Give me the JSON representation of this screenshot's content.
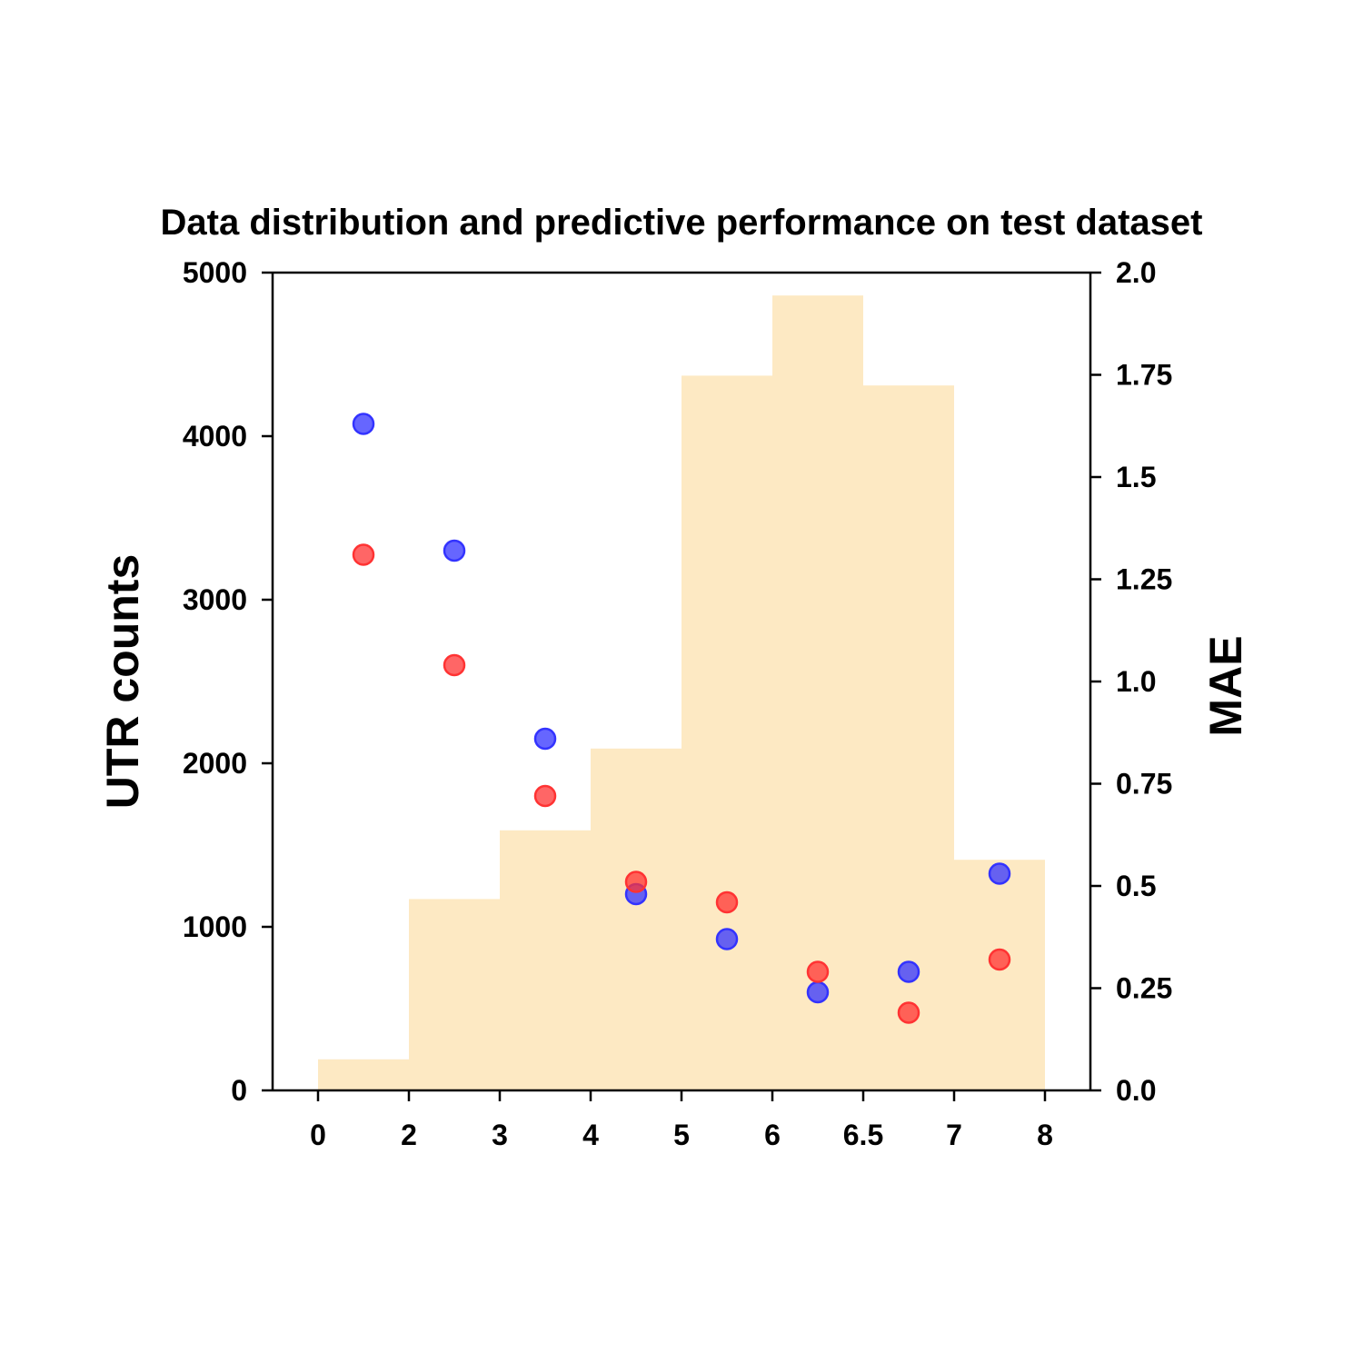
{
  "chart_data": {
    "type": "bar",
    "title": "Data distribution and predictive performance on test dataset",
    "xlabel": "",
    "ylabel": "UTR counts",
    "y2label": "MAE",
    "x_ticks": [
      "0",
      "2",
      "3",
      "4",
      "5",
      "6",
      "6.5",
      "7",
      "8"
    ],
    "ylim": [
      0,
      5000
    ],
    "y_ticks": [
      "0",
      "1000",
      "2000",
      "3000",
      "4000",
      "5000"
    ],
    "y2lim": [
      0,
      2.0
    ],
    "y2_ticks": [
      "0.0",
      "0.25",
      "0.5",
      "0.75",
      "1.0",
      "1.25",
      "1.5",
      "1.75",
      "2.0"
    ],
    "grid": false,
    "histogram": {
      "color": "#fde9c3",
      "bins": [
        "0-2",
        "2-3",
        "3-4",
        "4-5",
        "5-6",
        "6-6.5",
        "6.5-7",
        "7-8"
      ],
      "values": [
        190,
        1170,
        1590,
        2090,
        4370,
        4860,
        4310,
        1410
      ]
    },
    "series": [
      {
        "color": "#3333ff",
        "axis": "right",
        "values": [
          1.63,
          1.32,
          0.86,
          0.48,
          0.37,
          0.24,
          0.29,
          0.53
        ]
      },
      {
        "color": "#ff3333",
        "axis": "right",
        "values": [
          1.31,
          1.04,
          0.72,
          0.51,
          0.46,
          0.29,
          0.19,
          0.32
        ]
      }
    ]
  }
}
